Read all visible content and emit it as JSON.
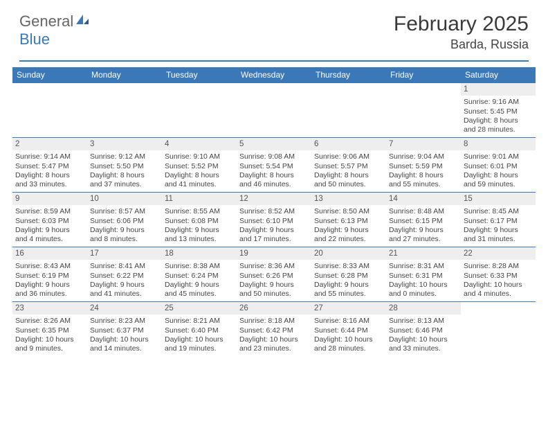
{
  "logo": {
    "text1": "General",
    "text2": "Blue"
  },
  "title": "February 2025",
  "location": "Barda, Russia",
  "colors": {
    "header_blue": "#3b78b8",
    "daybar_gray": "#eeeeee",
    "text": "#444444",
    "bg": "#ffffff"
  },
  "weekdays": [
    "Sunday",
    "Monday",
    "Tuesday",
    "Wednesday",
    "Thursday",
    "Friday",
    "Saturday"
  ],
  "calendar": {
    "rows": 5,
    "cols": 7,
    "first_weekday_index": 6,
    "days": [
      {
        "n": 1,
        "sunrise": "9:16 AM",
        "sunset": "5:45 PM",
        "daylight": "8 hours and 28 minutes."
      },
      {
        "n": 2,
        "sunrise": "9:14 AM",
        "sunset": "5:47 PM",
        "daylight": "8 hours and 33 minutes."
      },
      {
        "n": 3,
        "sunrise": "9:12 AM",
        "sunset": "5:50 PM",
        "daylight": "8 hours and 37 minutes."
      },
      {
        "n": 4,
        "sunrise": "9:10 AM",
        "sunset": "5:52 PM",
        "daylight": "8 hours and 41 minutes."
      },
      {
        "n": 5,
        "sunrise": "9:08 AM",
        "sunset": "5:54 PM",
        "daylight": "8 hours and 46 minutes."
      },
      {
        "n": 6,
        "sunrise": "9:06 AM",
        "sunset": "5:57 PM",
        "daylight": "8 hours and 50 minutes."
      },
      {
        "n": 7,
        "sunrise": "9:04 AM",
        "sunset": "5:59 PM",
        "daylight": "8 hours and 55 minutes."
      },
      {
        "n": 8,
        "sunrise": "9:01 AM",
        "sunset": "6:01 PM",
        "daylight": "8 hours and 59 minutes."
      },
      {
        "n": 9,
        "sunrise": "8:59 AM",
        "sunset": "6:03 PM",
        "daylight": "9 hours and 4 minutes."
      },
      {
        "n": 10,
        "sunrise": "8:57 AM",
        "sunset": "6:06 PM",
        "daylight": "9 hours and 8 minutes."
      },
      {
        "n": 11,
        "sunrise": "8:55 AM",
        "sunset": "6:08 PM",
        "daylight": "9 hours and 13 minutes."
      },
      {
        "n": 12,
        "sunrise": "8:52 AM",
        "sunset": "6:10 PM",
        "daylight": "9 hours and 17 minutes."
      },
      {
        "n": 13,
        "sunrise": "8:50 AM",
        "sunset": "6:13 PM",
        "daylight": "9 hours and 22 minutes."
      },
      {
        "n": 14,
        "sunrise": "8:48 AM",
        "sunset": "6:15 PM",
        "daylight": "9 hours and 27 minutes."
      },
      {
        "n": 15,
        "sunrise": "8:45 AM",
        "sunset": "6:17 PM",
        "daylight": "9 hours and 31 minutes."
      },
      {
        "n": 16,
        "sunrise": "8:43 AM",
        "sunset": "6:19 PM",
        "daylight": "9 hours and 36 minutes."
      },
      {
        "n": 17,
        "sunrise": "8:41 AM",
        "sunset": "6:22 PM",
        "daylight": "9 hours and 41 minutes."
      },
      {
        "n": 18,
        "sunrise": "8:38 AM",
        "sunset": "6:24 PM",
        "daylight": "9 hours and 45 minutes."
      },
      {
        "n": 19,
        "sunrise": "8:36 AM",
        "sunset": "6:26 PM",
        "daylight": "9 hours and 50 minutes."
      },
      {
        "n": 20,
        "sunrise": "8:33 AM",
        "sunset": "6:28 PM",
        "daylight": "9 hours and 55 minutes."
      },
      {
        "n": 21,
        "sunrise": "8:31 AM",
        "sunset": "6:31 PM",
        "daylight": "10 hours and 0 minutes."
      },
      {
        "n": 22,
        "sunrise": "8:28 AM",
        "sunset": "6:33 PM",
        "daylight": "10 hours and 4 minutes."
      },
      {
        "n": 23,
        "sunrise": "8:26 AM",
        "sunset": "6:35 PM",
        "daylight": "10 hours and 9 minutes."
      },
      {
        "n": 24,
        "sunrise": "8:23 AM",
        "sunset": "6:37 PM",
        "daylight": "10 hours and 14 minutes."
      },
      {
        "n": 25,
        "sunrise": "8:21 AM",
        "sunset": "6:40 PM",
        "daylight": "10 hours and 19 minutes."
      },
      {
        "n": 26,
        "sunrise": "8:18 AM",
        "sunset": "6:42 PM",
        "daylight": "10 hours and 23 minutes."
      },
      {
        "n": 27,
        "sunrise": "8:16 AM",
        "sunset": "6:44 PM",
        "daylight": "10 hours and 28 minutes."
      },
      {
        "n": 28,
        "sunrise": "8:13 AM",
        "sunset": "6:46 PM",
        "daylight": "10 hours and 33 minutes."
      }
    ]
  },
  "labels": {
    "sunrise_prefix": "Sunrise: ",
    "sunset_prefix": "Sunset: ",
    "daylight_prefix": "Daylight: "
  }
}
